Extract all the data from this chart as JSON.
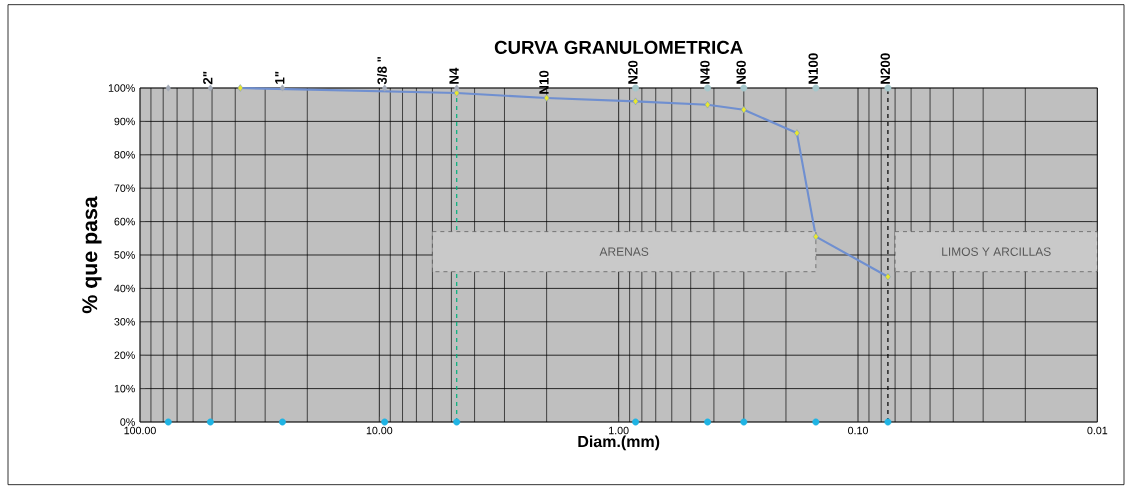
{
  "chart_data": {
    "type": "line",
    "title": "CURVA GRANULOMETRICA",
    "xlabel": "Diam.(mm)",
    "ylabel": "% que pasa",
    "log": "x",
    "xlim": [
      100,
      0.01
    ],
    "xticks": [
      {
        "value": 100,
        "label": "100.00"
      },
      {
        "value": 10,
        "label": "10.00"
      },
      {
        "value": 1,
        "label": "1.00"
      },
      {
        "value": 0.1,
        "label": "0.10"
      },
      {
        "value": 0.01,
        "label": "0.01"
      }
    ],
    "ylim": [
      0,
      100
    ],
    "yticks": [
      {
        "value": 0,
        "label": "0%"
      },
      {
        "value": 10,
        "label": "10%"
      },
      {
        "value": 20,
        "label": "20%"
      },
      {
        "value": 30,
        "label": "30%"
      },
      {
        "value": 40,
        "label": "40%"
      },
      {
        "value": 50,
        "label": "50%"
      },
      {
        "value": 60,
        "label": "60%"
      },
      {
        "value": 70,
        "label": "70%"
      },
      {
        "value": 80,
        "label": "80%"
      },
      {
        "value": 90,
        "label": "90%"
      },
      {
        "value": 100,
        "label": "100%"
      }
    ],
    "grid": true,
    "series": [
      {
        "color": "#6f8fd0",
        "marker": "diamond",
        "colors": [
          "#e8e830",
          "#e8e830",
          "#e8e830",
          "#e8e830",
          "#e8e830",
          "#e8e830",
          "#e8e830",
          "#e8e830",
          "#e8e830"
        ],
        "x": [
          38.1,
          4.75,
          2.0,
          0.85,
          0.425,
          0.3,
          0.18,
          0.15,
          0.075
        ],
        "values": [
          100,
          98.5,
          97,
          96,
          95,
          93.5,
          86.5,
          55.5,
          43.5
        ]
      },
      {
        "type": "scatter",
        "color": "#a4abb8",
        "marker": "diamond",
        "x": [
          76.2,
          50.8,
          25.4,
          9.5,
          4.75
        ],
        "values": [
          100,
          100,
          100,
          100,
          100
        ]
      },
      {
        "type": "scatter",
        "color": "#a6c8cc",
        "marker": "circle",
        "x": [
          0.85,
          0.425,
          0.3,
          0.15,
          0.075
        ],
        "values": [
          100,
          100,
          100,
          100,
          100
        ]
      },
      {
        "type": "scatter",
        "color": "#1fb4e4",
        "marker": "circle",
        "x": [
          76.2,
          50.8,
          25.4,
          9.5,
          4.75,
          0.85,
          0.425,
          0.3,
          0.15,
          0.075
        ],
        "values": [
          0,
          0,
          0,
          0,
          0,
          0,
          0,
          0,
          0,
          0
        ]
      }
    ],
    "ref_lines": [
      {
        "axis": "x",
        "value": 4.75,
        "color": "#00b07a",
        "line_style": "dashed"
      },
      {
        "axis": "x",
        "value": 0.075,
        "color": "#000000",
        "line_style": "dashed"
      }
    ],
    "bands": [
      {
        "axis": "x",
        "from": 6,
        "to": 0.15,
        "label": "ARENAS"
      },
      {
        "axis": "x",
        "from": 0.07,
        "to": 0.01,
        "label": "LIMOS Y ARCILLAS"
      }
    ],
    "annotations": [
      {
        "text": "2\"",
        "x": 50.8,
        "y": 100
      },
      {
        "text": "1\"",
        "x": 25.4,
        "y": 100
      },
      {
        "text": "3/8 \"",
        "x": 9.5,
        "y": 100
      },
      {
        "text": "N4",
        "x": 4.75,
        "y": 100
      },
      {
        "text": "N10",
        "x": 2.0,
        "y": 97
      },
      {
        "text": "N20",
        "x": 0.85,
        "y": 100
      },
      {
        "text": "N40",
        "x": 0.425,
        "y": 100
      },
      {
        "text": "N60",
        "x": 0.3,
        "y": 100
      },
      {
        "text": "N100",
        "x": 0.15,
        "y": 100
      },
      {
        "text": "N200",
        "x": 0.075,
        "y": 100
      }
    ]
  }
}
